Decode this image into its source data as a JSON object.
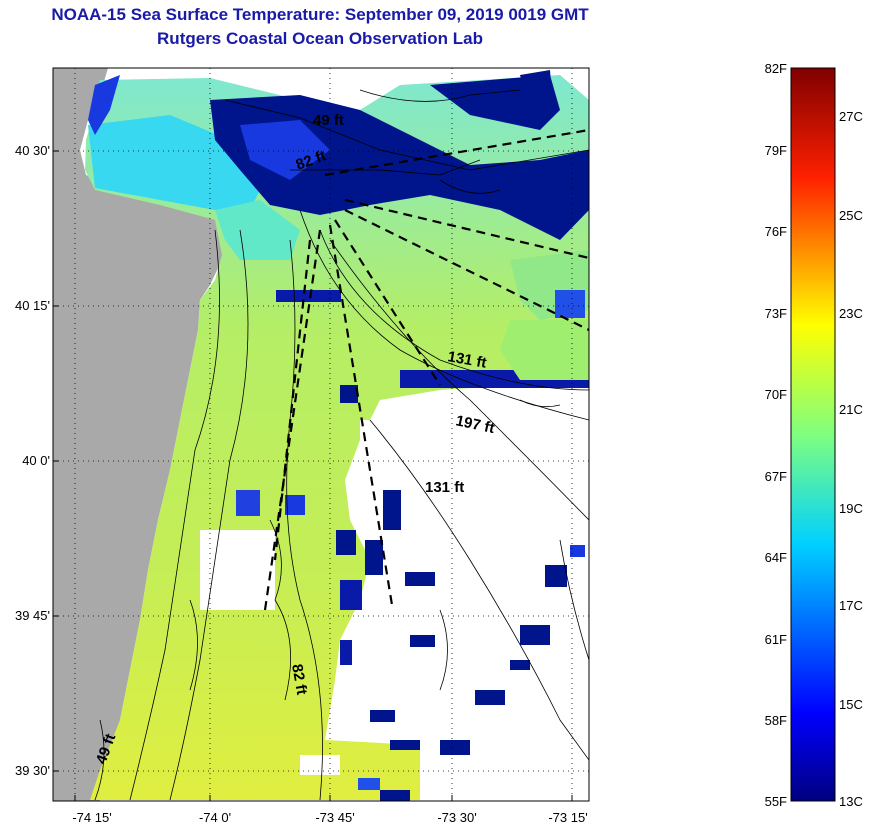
{
  "title": "NOAA-15 Sea Surface Temperature:  September 09, 2019 0019 GMT",
  "subtitle": "Rutgers Coastal Ocean Observation Lab",
  "map": {
    "lat_ticks": [
      "40 30'",
      "40 15'",
      "40 0'",
      "39 45'",
      "39 30'"
    ],
    "lon_ticks": [
      "-74 15'",
      "-74 0'",
      "-73 45'",
      "-73 30'",
      "-73 15'"
    ],
    "contour_labels": [
      "49 ft",
      "82 ft",
      "131 ft",
      "197 ft",
      "131 ft",
      "82 ft",
      "49 ft"
    ]
  },
  "colorbar": {
    "fahrenheit": [
      "82F",
      "79F",
      "76F",
      "73F",
      "70F",
      "67F",
      "64F",
      "61F",
      "58F",
      "55F"
    ],
    "celsius": [
      "27C",
      "25C",
      "23C",
      "21C",
      "19C",
      "17C",
      "15C",
      "13C"
    ]
  },
  "colors": {
    "land": "#a9a9a9",
    "title": "#1a1aa8"
  }
}
